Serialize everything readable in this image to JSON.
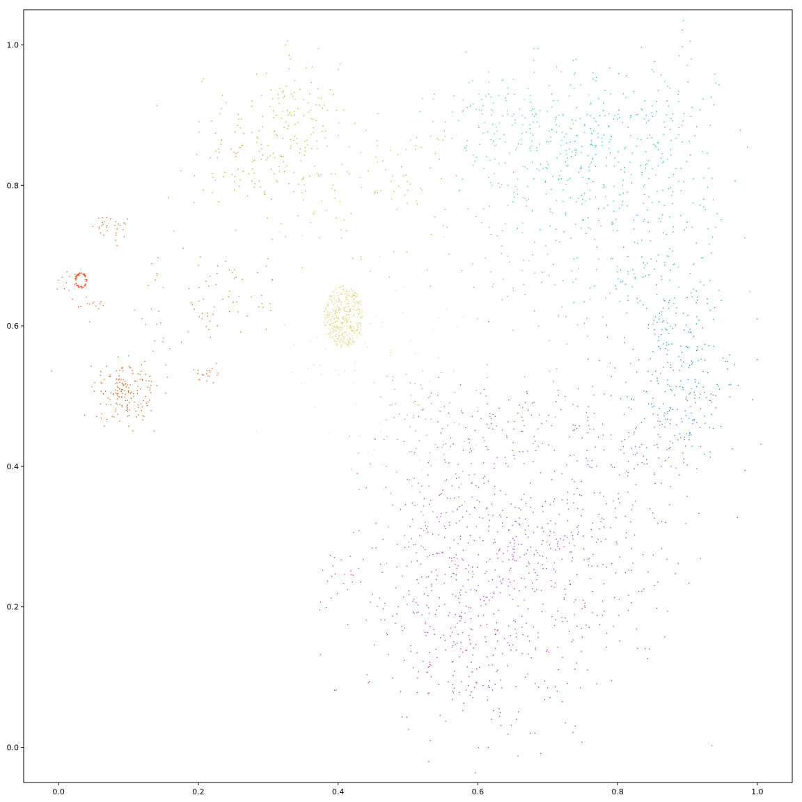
{
  "chart_data": {
    "type": "scatter",
    "title": "",
    "xlabel": "",
    "ylabel": "",
    "xlim": [
      -0.05,
      1.05
    ],
    "ylim": [
      -0.05,
      1.05
    ],
    "grid": false,
    "legend": "none",
    "x_ticks": [
      "0.0",
      "0.2",
      "0.4",
      "0.6",
      "0.8",
      "1.0"
    ],
    "y_ticks": [
      "0.0",
      "0.2",
      "0.4",
      "0.6",
      "0.8",
      "1.0"
    ],
    "clusters": [
      {
        "cx": 0.032,
        "cy": 0.665,
        "sx": 0.008,
        "sy": 0.01,
        "n": 70,
        "ring": true,
        "color": "#ff4a1e"
      },
      {
        "cx": 0.015,
        "cy": 0.665,
        "sx": 0.01,
        "sy": 0.02,
        "n": 10,
        "color": "#ff4a1e"
      },
      {
        "cx": 0.075,
        "cy": 0.74,
        "sx": 0.015,
        "sy": 0.01,
        "n": 30,
        "color": "#f05a22"
      },
      {
        "cx": 0.05,
        "cy": 0.63,
        "sx": 0.015,
        "sy": 0.006,
        "n": 12,
        "color": "#f05a22"
      },
      {
        "cx": 0.095,
        "cy": 0.505,
        "sx": 0.025,
        "sy": 0.022,
        "n": 170,
        "color": "#d75a0c"
      },
      {
        "cx": 0.14,
        "cy": 0.65,
        "sx": 0.02,
        "sy": 0.04,
        "n": 20,
        "color": "#e0641a"
      },
      {
        "cx": 0.212,
        "cy": 0.53,
        "sx": 0.008,
        "sy": 0.008,
        "n": 20,
        "color": "#d2691e"
      },
      {
        "cx": 0.215,
        "cy": 0.64,
        "sx": 0.02,
        "sy": 0.03,
        "n": 35,
        "color": "#b07010"
      },
      {
        "cx": 0.27,
        "cy": 0.64,
        "sx": 0.025,
        "sy": 0.03,
        "n": 25,
        "color": "#b08a10"
      },
      {
        "cx": 0.27,
        "cy": 0.84,
        "sx": 0.045,
        "sy": 0.05,
        "n": 120,
        "color": "#b0a01a"
      },
      {
        "cx": 0.34,
        "cy": 0.9,
        "sx": 0.03,
        "sy": 0.035,
        "n": 90,
        "color": "#b8b01a"
      },
      {
        "cx": 0.4,
        "cy": 0.82,
        "sx": 0.05,
        "sy": 0.06,
        "n": 60,
        "color": "#c0b830"
      },
      {
        "cx": 0.49,
        "cy": 0.8,
        "sx": 0.04,
        "sy": 0.05,
        "n": 50,
        "color": "#aab030"
      },
      {
        "cx": 0.408,
        "cy": 0.613,
        "sx": 0.028,
        "sy": 0.045,
        "n": 400,
        "disk": true,
        "color": "#d8d878"
      },
      {
        "cx": 0.46,
        "cy": 0.55,
        "sx": 0.08,
        "sy": 0.08,
        "n": 70,
        "color": "#e2dc9a"
      },
      {
        "cx": 0.51,
        "cy": 0.45,
        "sx": 0.05,
        "sy": 0.06,
        "n": 80,
        "color": "#a0a070"
      },
      {
        "cx": 0.66,
        "cy": 0.88,
        "sx": 0.06,
        "sy": 0.05,
        "n": 160,
        "color": "#40d870"
      },
      {
        "cx": 0.76,
        "cy": 0.86,
        "sx": 0.07,
        "sy": 0.06,
        "n": 250,
        "color": "#10c890"
      },
      {
        "cx": 0.88,
        "cy": 0.86,
        "sx": 0.04,
        "sy": 0.07,
        "n": 100,
        "color": "#10c0a0"
      },
      {
        "cx": 0.84,
        "cy": 0.7,
        "sx": 0.06,
        "sy": 0.06,
        "n": 150,
        "color": "#10b0c0"
      },
      {
        "cx": 0.68,
        "cy": 0.68,
        "sx": 0.06,
        "sy": 0.07,
        "n": 80,
        "color": "#80a0a0"
      },
      {
        "cx": 0.89,
        "cy": 0.54,
        "sx": 0.04,
        "sy": 0.06,
        "n": 220,
        "color": "#1080e0"
      },
      {
        "cx": 0.83,
        "cy": 0.43,
        "sx": 0.06,
        "sy": 0.06,
        "n": 120,
        "color": "#5a60d8"
      },
      {
        "cx": 0.65,
        "cy": 0.47,
        "sx": 0.06,
        "sy": 0.03,
        "n": 80,
        "color": "#6a50e0"
      },
      {
        "cx": 0.72,
        "cy": 0.28,
        "sx": 0.09,
        "sy": 0.09,
        "n": 320,
        "color": "#8a30d0"
      },
      {
        "cx": 0.61,
        "cy": 0.24,
        "sx": 0.08,
        "sy": 0.1,
        "n": 240,
        "color": "#a830c0"
      },
      {
        "cx": 0.53,
        "cy": 0.2,
        "sx": 0.05,
        "sy": 0.08,
        "n": 120,
        "color": "#d03080"
      },
      {
        "cx": 0.6,
        "cy": 0.1,
        "sx": 0.06,
        "sy": 0.04,
        "n": 90,
        "color": "#c01880"
      },
      {
        "cx": 0.56,
        "cy": 0.35,
        "sx": 0.05,
        "sy": 0.06,
        "n": 100,
        "color": "#a050a0"
      },
      {
        "cx": 0.4,
        "cy": 0.25,
        "sx": 0.015,
        "sy": 0.03,
        "n": 20,
        "color": "#e03060"
      }
    ],
    "points": [
      {
        "x": 0.0,
        "y": 0.665,
        "color": "#ff4a1e"
      },
      {
        "x": 1.0,
        "y": 0.552,
        "color": "#1070e0"
      },
      {
        "x": 0.993,
        "y": 0.495,
        "color": "#1070e0"
      },
      {
        "x": 0.68,
        "y": 0.995,
        "color": "#30d080"
      },
      {
        "x": 0.615,
        "y": 0.0,
        "color": "#8a40a0"
      },
      {
        "x": 0.675,
        "y": 0.02,
        "color": "#8a40a0"
      },
      {
        "x": 0.725,
        "y": 0.035,
        "color": "#8a40a0"
      },
      {
        "x": 0.33,
        "y": 0.985,
        "color": "#b0b020"
      },
      {
        "x": 0.4,
        "y": 0.965,
        "color": "#b0b020"
      },
      {
        "x": 0.583,
        "y": 0.99,
        "color": "#50d070"
      },
      {
        "x": 0.62,
        "y": 0.04,
        "color": "#8a40a0"
      },
      {
        "x": 0.655,
        "y": 0.04,
        "color": "#8a40a0"
      }
    ]
  }
}
